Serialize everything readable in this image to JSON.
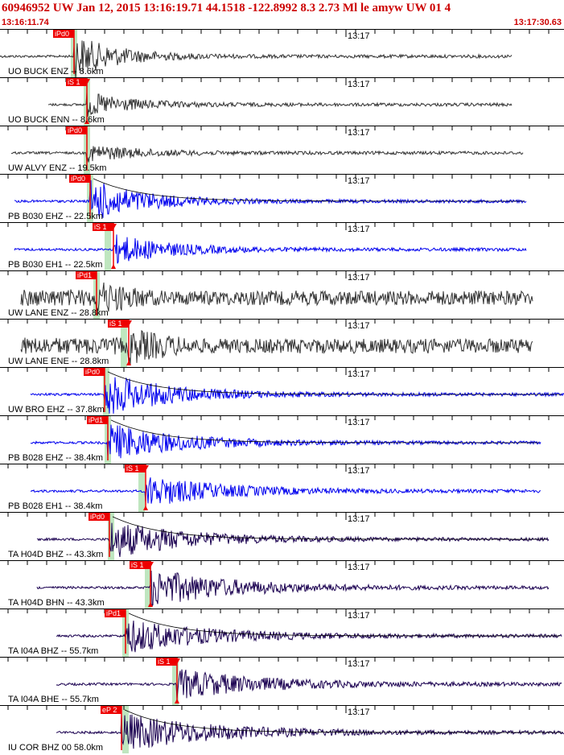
{
  "header": {
    "title": "60946952  UW Jan 12, 2015 13:16:19.71    44.1518 -122.8992  8.3 2.73 Ml le amyw UW 01    4",
    "start_time": "13:16:11.74",
    "end_time": "13:17:30.63"
  },
  "colors": {
    "title": "#cc0000",
    "pick_box": "#ee0000",
    "window_band": "#bfe6bf",
    "trace_gray": "#333333",
    "trace_blue": "#0000ee",
    "trace_navy": "#1a0050",
    "coda_fit": "#000000"
  },
  "chart_data": {
    "type": "line",
    "title": "60946952  UW Jan 12, 2015 13:16:19.71    44.1518 -122.8992  8.3 2.73 Ml le amyw UW 01    4",
    "time_range": [
      "13:16:11.74",
      "13:17:30.63"
    ],
    "minute_label": "13:17",
    "series": [
      {
        "name": "UO BUCK ENZ -- 8.6km",
        "color": "gray",
        "pick": "iPd0",
        "amp": 1.0
      },
      {
        "name": "UO BUCK ENN -- 8.6km",
        "color": "gray",
        "pick": "iS 1",
        "amp": 0.55
      },
      {
        "name": "UW ALVY ENZ -- 19.5km",
        "color": "gray",
        "pick": "iPd0",
        "amp": 0.4
      },
      {
        "name": "PB B030 EHZ -- 22.5km",
        "color": "blue",
        "pick": "iPd0",
        "amp": 1.0
      },
      {
        "name": "PB B030 EH1 -- 22.5km",
        "color": "blue",
        "pick": "iS 1",
        "amp": 0.7
      },
      {
        "name": "UW LANE ENZ -- 28.8km",
        "color": "gray",
        "pick": "iPd1",
        "amp": 0.8
      },
      {
        "name": "UW LANE ENE -- 28.8km",
        "color": "gray",
        "pick": "iS 1",
        "amp": 0.85
      },
      {
        "name": "UW BRO EHZ -- 37.8km",
        "color": "blue",
        "pick": "iPd0",
        "amp": 1.0
      },
      {
        "name": "PB B028 EHZ -- 38.4km",
        "color": "blue",
        "pick": "iPd1",
        "amp": 0.9
      },
      {
        "name": "PB B028 EH1 -- 38.4km",
        "color": "blue",
        "pick": "iS 1",
        "amp": 0.75
      },
      {
        "name": "TA H04D BHZ -- 43.3km",
        "color": "navy",
        "pick": "iPd0",
        "amp": 0.9
      },
      {
        "name": "TA H04D BHN -- 43.3km",
        "color": "navy",
        "pick": "iS 1",
        "amp": 0.9
      },
      {
        "name": "TA I04A BHZ -- 55.7km",
        "color": "navy",
        "pick": "iPd1",
        "amp": 0.8
      },
      {
        "name": "TA I04A BHE -- 55.7km",
        "color": "navy",
        "pick": "iS 1",
        "amp": 0.7
      },
      {
        "name": "IU COR BHZ 00 58.0km",
        "color": "navy",
        "pick": "eP 2",
        "amp": 0.9
      }
    ]
  }
}
